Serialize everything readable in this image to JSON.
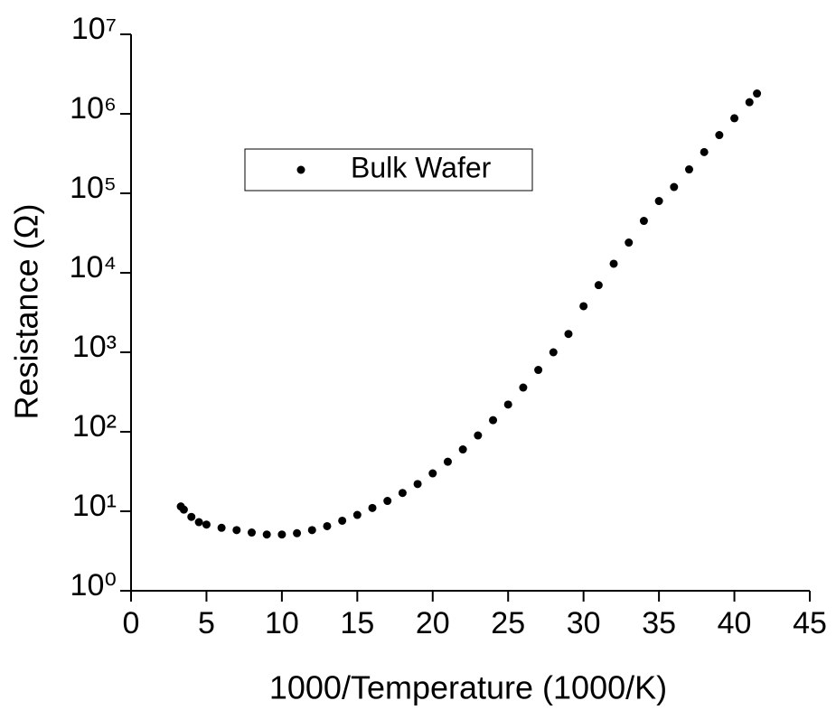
{
  "chart_data": {
    "type": "scatter",
    "xlabel": "1000/Temperature (1000/K)",
    "ylabel": "Resistance (Ω)",
    "log_y": true,
    "xlim": [
      0,
      45
    ],
    "xticks": [
      0,
      5,
      10,
      15,
      20,
      25,
      30,
      35,
      40,
      45
    ],
    "ylim": [
      1,
      10000000
    ],
    "yticks": [
      {
        "value": 1,
        "label": "10⁰"
      },
      {
        "value": 10,
        "label": "10¹"
      },
      {
        "value": 100,
        "label": "10²"
      },
      {
        "value": 1000,
        "label": "10³"
      },
      {
        "value": 10000,
        "label": "10⁴"
      },
      {
        "value": 100000,
        "label": "10⁵"
      },
      {
        "value": 1000000,
        "label": "10⁶"
      },
      {
        "value": 10000000,
        "label": "10⁷"
      }
    ],
    "legend": "upper-left",
    "series": [
      {
        "name": "Bulk Wafer",
        "color": "#000000",
        "x": [
          3.3,
          3.5,
          4,
          4.5,
          5,
          6,
          7,
          8,
          9,
          10,
          11,
          12,
          13,
          14,
          15,
          16,
          17,
          18,
          19,
          20,
          21,
          22,
          23,
          24,
          25,
          26,
          27,
          28,
          29,
          30,
          31,
          32,
          33,
          34,
          35,
          36,
          37,
          38,
          39,
          40,
          41,
          41.5
        ],
        "values": [
          11.5,
          10.5,
          8.5,
          7.3,
          6.8,
          6.2,
          5.8,
          5.4,
          5.1,
          5.1,
          5.3,
          5.8,
          6.5,
          7.6,
          9,
          11,
          13.5,
          17,
          22,
          30,
          42,
          60,
          90,
          140,
          220,
          360,
          600,
          1000,
          1700,
          3800,
          7000,
          13000,
          24000,
          45000,
          80000,
          120000,
          200000,
          330000,
          540000,
          880000,
          1400000,
          1800000
        ]
      }
    ]
  }
}
